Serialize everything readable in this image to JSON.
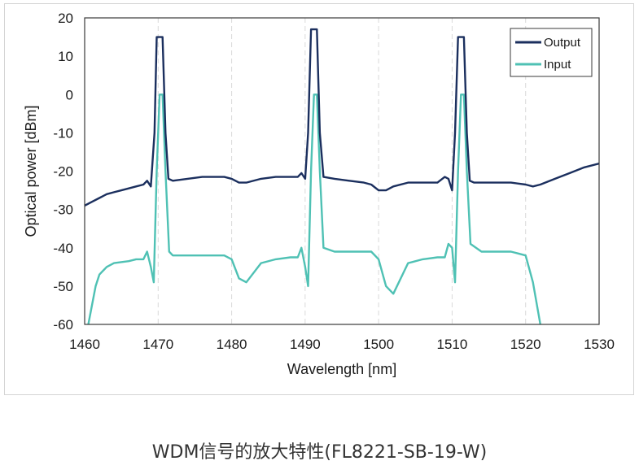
{
  "caption": "WDM信号的放大特性(FL8221-SB-19-W)",
  "colors": {
    "output": "#1b2f5e",
    "input": "#4fc1b4",
    "grid": "#d9d9d9",
    "axis": "#3a3a3a"
  },
  "chart_data": {
    "type": "line",
    "xlabel": "Wavelength [nm]",
    "ylabel": "Optical power [dBm]",
    "xlim": [
      1460,
      1530
    ],
    "ylim": [
      -60,
      20
    ],
    "xticks": [
      1460,
      1470,
      1480,
      1490,
      1500,
      1510,
      1520,
      1530
    ],
    "yticks": [
      20,
      10,
      0,
      -10,
      -20,
      -30,
      -40,
      -50,
      -60
    ],
    "grid": "vertical-dashed",
    "legend_position": "top-right",
    "series": [
      {
        "name": "Output",
        "x": [
          1460,
          1461,
          1462,
          1463,
          1464,
          1465,
          1466,
          1467,
          1468,
          1468.5,
          1469,
          1469.5,
          1469.8,
          1470.2,
          1470.6,
          1471,
          1471.4,
          1472,
          1474,
          1476,
          1478,
          1479,
          1480,
          1481,
          1482,
          1484,
          1486,
          1488,
          1489,
          1489.5,
          1490,
          1490.4,
          1490.8,
          1491.2,
          1491.6,
          1492,
          1492.5,
          1494,
          1496,
          1498,
          1499,
          1500,
          1501,
          1502,
          1504,
          1506,
          1508,
          1509,
          1509.5,
          1510,
          1510.4,
          1510.8,
          1511.2,
          1511.6,
          1512,
          1512.4,
          1513,
          1514,
          1516,
          1518,
          1520,
          1521,
          1522,
          1524,
          1526,
          1528,
          1530
        ],
        "y": [
          -29,
          -28,
          -27,
          -26,
          -25.5,
          -25,
          -24.5,
          -24,
          -23.5,
          -22.5,
          -24,
          -10,
          15,
          15,
          15,
          -10,
          -22,
          -22.5,
          -22,
          -21.5,
          -21.5,
          -21.5,
          -22,
          -23,
          -23,
          -22,
          -21.5,
          -21.5,
          -21.5,
          -20.5,
          -22,
          -10,
          17,
          17,
          17,
          -10,
          -21.5,
          -22,
          -22.5,
          -23,
          -23.5,
          -25,
          -25,
          -24,
          -23,
          -23,
          -23,
          -21.5,
          -22,
          -25,
          -10,
          15,
          15,
          15,
          -10,
          -22.5,
          -23,
          -23,
          -23,
          -23,
          -23.5,
          -24,
          -23.5,
          -22,
          -20.5,
          -19,
          -18
        ]
      },
      {
        "name": "Input",
        "x": [
          1460.5,
          1461,
          1461.5,
          1462,
          1463,
          1464,
          1466,
          1467,
          1468,
          1468.5,
          1469,
          1469.4,
          1469.8,
          1470.2,
          1470.6,
          1471,
          1471.5,
          1472,
          1474,
          1476,
          1478,
          1479,
          1480,
          1481,
          1482,
          1484,
          1486,
          1488,
          1489,
          1489.5,
          1490,
          1490.4,
          1490.8,
          1491.2,
          1491.6,
          1492,
          1492.5,
          1494,
          1496,
          1498,
          1499,
          1500,
          1501,
          1502,
          1504,
          1506,
          1508,
          1509,
          1509.5,
          1510,
          1510.4,
          1510.8,
          1511.2,
          1511.6,
          1512,
          1512.5,
          1514,
          1516,
          1518,
          1519,
          1520,
          1521,
          1522
        ],
        "y": [
          -60,
          -55,
          -50,
          -47,
          -45,
          -44,
          -43.5,
          -43,
          -43,
          -41,
          -45,
          -49,
          -20,
          0,
          0,
          -20,
          -41,
          -42,
          -42,
          -42,
          -42,
          -42,
          -43,
          -48,
          -49,
          -44,
          -43,
          -42.5,
          -42.5,
          -40,
          -45,
          -50,
          -20,
          0,
          0,
          -20,
          -40,
          -41,
          -41,
          -41,
          -41,
          -43,
          -50,
          -52,
          -44,
          -43,
          -42.5,
          -42.5,
          -39,
          -40,
          -49,
          -20,
          0,
          0,
          -20,
          -39,
          -41,
          -41,
          -41,
          -41.5,
          -42,
          -49,
          -60
        ]
      }
    ]
  }
}
